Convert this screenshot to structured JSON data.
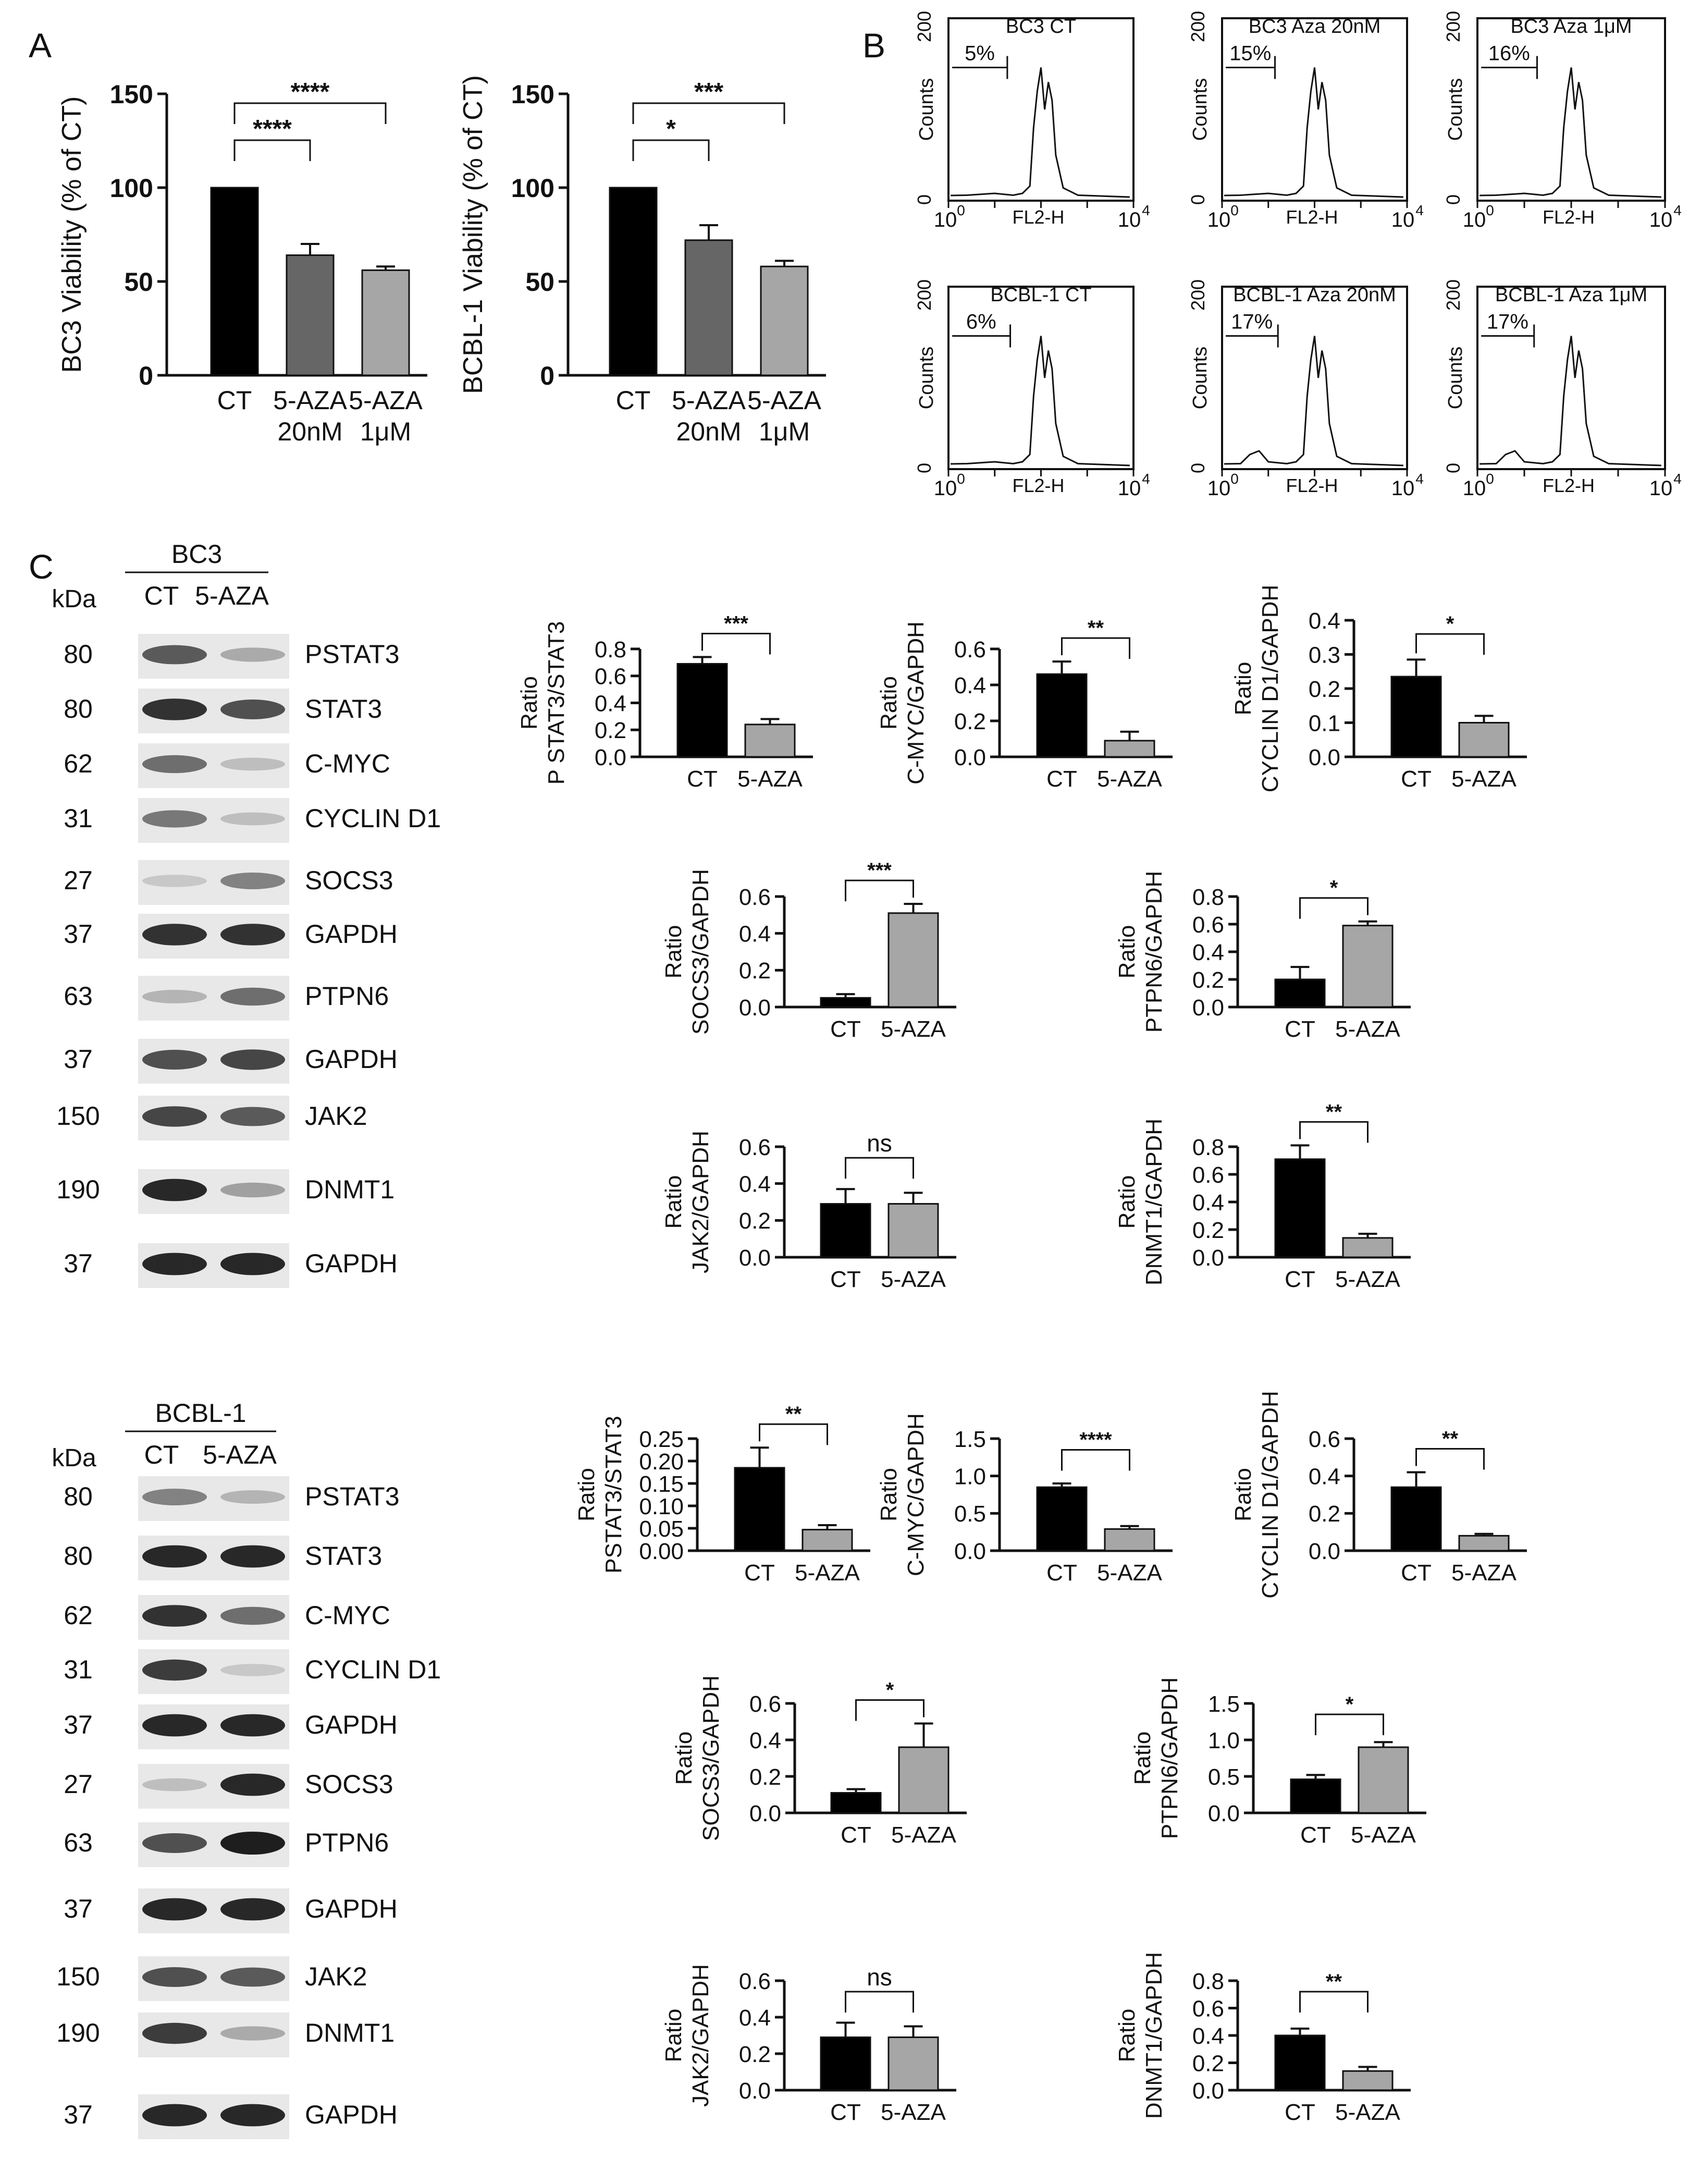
{
  "panel_letters": [
    "A",
    "B",
    "C"
  ],
  "colors": {
    "black_bar": "#000000",
    "dark_gray_bar": "#666666",
    "light_gray_bar": "#a6a6a6",
    "blot_bg": "#e8e8e8",
    "band": "#303030"
  },
  "chart_data": [
    {
      "id": "A1",
      "type": "bar",
      "ylabel": "BC3 Viability (% of CT)",
      "ylim": [
        0,
        150
      ],
      "yticks": [
        "0",
        "50",
        "100",
        "150"
      ],
      "categories": [
        [
          "CT"
        ],
        [
          "5-AZA",
          "20nM"
        ],
        [
          "5-AZA",
          "1μM"
        ]
      ],
      "values": [
        100,
        64,
        56
      ],
      "errors": [
        0,
        6,
        2
      ],
      "bar_colors": [
        "#000000",
        "#666666",
        "#a6a6a6"
      ],
      "sig": [
        {
          "a": 0,
          "b": 1,
          "label": "****"
        },
        {
          "a": 0,
          "b": 2,
          "label": "****"
        }
      ]
    },
    {
      "id": "A2",
      "type": "bar",
      "ylabel": "BCBL-1 Viability (% of CT)",
      "ylim": [
        0,
        150
      ],
      "yticks": [
        "0",
        "50",
        "100",
        "150"
      ],
      "categories": [
        [
          "CT"
        ],
        [
          "5-AZA",
          "20nM"
        ],
        [
          "5-AZA",
          "1μM"
        ]
      ],
      "values": [
        100,
        72,
        58
      ],
      "errors": [
        0,
        8,
        3
      ],
      "bar_colors": [
        "#000000",
        "#666666",
        "#a6a6a6"
      ],
      "sig": [
        {
          "a": 0,
          "b": 1,
          "label": "*"
        },
        {
          "a": 0,
          "b": 2,
          "label": "***"
        }
      ]
    },
    {
      "id": "C1",
      "type": "bar",
      "ylabel": "Ratio P STAT3/STAT3",
      "ylim": [
        0,
        0.8
      ],
      "yticks": [
        "0.0",
        "0.2",
        "0.4",
        "0.6",
        "0.8"
      ],
      "categories": [
        [
          "CT"
        ],
        [
          "5-AZA"
        ]
      ],
      "values": [
        0.69,
        0.24
      ],
      "errors": [
        0.05,
        0.04
      ],
      "sig": [
        {
          "a": 0,
          "b": 1,
          "label": "***"
        }
      ]
    },
    {
      "id": "C2",
      "type": "bar",
      "ylabel": "Ratio C-MYC/GAPDH",
      "ylim": [
        0,
        0.6
      ],
      "yticks": [
        "0.0",
        "0.2",
        "0.4",
        "0.6"
      ],
      "categories": [
        [
          "CT"
        ],
        [
          "5-AZA"
        ]
      ],
      "values": [
        0.46,
        0.09
      ],
      "errors": [
        0.07,
        0.05
      ],
      "sig": [
        {
          "a": 0,
          "b": 1,
          "label": "**"
        }
      ]
    },
    {
      "id": "C3",
      "type": "bar",
      "ylabel": "Ratio CYCLIN D1/GAPDH",
      "ylim": [
        0,
        0.4
      ],
      "yticks": [
        "0.0",
        "0.1",
        "0.2",
        "0.3",
        "0.4"
      ],
      "categories": [
        [
          "CT"
        ],
        [
          "5-AZA"
        ]
      ],
      "values": [
        0.235,
        0.1
      ],
      "errors": [
        0.05,
        0.02
      ],
      "sig": [
        {
          "a": 0,
          "b": 1,
          "label": "*"
        }
      ]
    },
    {
      "id": "C4",
      "type": "bar",
      "ylabel": "Ratio SOCS3/GAPDH",
      "ylim": [
        0,
        0.6
      ],
      "yticks": [
        "0.0",
        "0.2",
        "0.4",
        "0.6"
      ],
      "categories": [
        [
          "CT"
        ],
        [
          "5-AZA"
        ]
      ],
      "values": [
        0.05,
        0.51
      ],
      "errors": [
        0.02,
        0.05
      ],
      "sig": [
        {
          "a": 0,
          "b": 1,
          "label": "***"
        }
      ]
    },
    {
      "id": "C5",
      "type": "bar",
      "ylabel": "Ratio PTPN6/GAPDH",
      "ylim": [
        0,
        0.8
      ],
      "yticks": [
        "0.0",
        "0.2",
        "0.4",
        "0.6",
        "0.8"
      ],
      "categories": [
        [
          "CT"
        ],
        [
          "5-AZA"
        ]
      ],
      "values": [
        0.2,
        0.59
      ],
      "errors": [
        0.09,
        0.03
      ],
      "sig": [
        {
          "a": 0,
          "b": 1,
          "label": "*"
        }
      ]
    },
    {
      "id": "C6",
      "type": "bar",
      "ylabel": "Ratio JAK2/GAPDH",
      "ylim": [
        0,
        0.6
      ],
      "yticks": [
        "0.0",
        "0.2",
        "0.4",
        "0.6"
      ],
      "categories": [
        [
          "CT"
        ],
        [
          "5-AZA"
        ]
      ],
      "values": [
        0.29,
        0.29
      ],
      "errors": [
        0.08,
        0.06
      ],
      "sig": [
        {
          "a": 0,
          "b": 1,
          "label": "ns"
        }
      ]
    },
    {
      "id": "C7",
      "type": "bar",
      "ylabel": "Ratio DNMT1/GAPDH",
      "ylim": [
        0,
        0.8
      ],
      "yticks": [
        "0.0",
        "0.2",
        "0.4",
        "0.6",
        "0.8"
      ],
      "categories": [
        [
          "CT"
        ],
        [
          "5-AZA"
        ]
      ],
      "values": [
        0.71,
        0.14
      ],
      "errors": [
        0.1,
        0.03
      ],
      "sig": [
        {
          "a": 0,
          "b": 1,
          "label": "**"
        }
      ]
    },
    {
      "id": "C8",
      "type": "bar",
      "ylabel": "Ratio PSTAT3/STAT3",
      "ylim": [
        0,
        0.25
      ],
      "yticks": [
        "0.00",
        "0.05",
        "0.10",
        "0.15",
        "0.20",
        "0.25"
      ],
      "categories": [
        [
          "CT"
        ],
        [
          "5-AZA"
        ]
      ],
      "values": [
        0.185,
        0.047
      ],
      "errors": [
        0.045,
        0.01
      ],
      "sig": [
        {
          "a": 0,
          "b": 1,
          "label": "**"
        }
      ]
    },
    {
      "id": "C9",
      "type": "bar",
      "ylabel": "Ratio C-MYC/GAPDH",
      "ylim": [
        0,
        1.5
      ],
      "yticks": [
        "0.0",
        "0.5",
        "1.0",
        "1.5"
      ],
      "categories": [
        [
          "CT"
        ],
        [
          "5-AZA"
        ]
      ],
      "values": [
        0.85,
        0.29
      ],
      "errors": [
        0.05,
        0.04
      ],
      "sig": [
        {
          "a": 0,
          "b": 1,
          "label": "****"
        }
      ]
    },
    {
      "id": "C10",
      "type": "bar",
      "ylabel": "Ratio CYCLIN D1/GAPDH",
      "ylim": [
        0,
        0.6
      ],
      "yticks": [
        "0.0",
        "0.2",
        "0.4",
        "0.6"
      ],
      "categories": [
        [
          "CT"
        ],
        [
          "5-AZA"
        ]
      ],
      "values": [
        0.34,
        0.08
      ],
      "errors": [
        0.08,
        0.01
      ],
      "sig": [
        {
          "a": 0,
          "b": 1,
          "label": "**"
        }
      ]
    },
    {
      "id": "C11",
      "type": "bar",
      "ylabel": "Ratio SOCS3/GAPDH",
      "ylim": [
        0,
        0.6
      ],
      "yticks": [
        "0.0",
        "0.2",
        "0.4",
        "0.6"
      ],
      "categories": [
        [
          "CT"
        ],
        [
          "5-AZA"
        ]
      ],
      "values": [
        0.11,
        0.36
      ],
      "errors": [
        0.02,
        0.13
      ],
      "sig": [
        {
          "a": 0,
          "b": 1,
          "label": "*"
        }
      ]
    },
    {
      "id": "C12",
      "type": "bar",
      "ylabel": "Ratio PTPN6/GAPDH",
      "ylim": [
        0,
        1.5
      ],
      "yticks": [
        "0.0",
        "0.5",
        "1.0",
        "1.5"
      ],
      "categories": [
        [
          "CT"
        ],
        [
          "5-AZA"
        ]
      ],
      "values": [
        0.46,
        0.9
      ],
      "errors": [
        0.06,
        0.07
      ],
      "sig": [
        {
          "a": 0,
          "b": 1,
          "label": "*"
        }
      ]
    },
    {
      "id": "C13",
      "type": "bar",
      "ylabel": "Ratio JAK2/GAPDH",
      "ylim": [
        0,
        0.6
      ],
      "yticks": [
        "0.0",
        "0.2",
        "0.4",
        "0.6"
      ],
      "categories": [
        [
          "CT"
        ],
        [
          "5-AZA"
        ]
      ],
      "values": [
        0.29,
        0.29
      ],
      "errors": [
        0.08,
        0.06
      ],
      "sig": [
        {
          "a": 0,
          "b": 1,
          "label": "ns"
        }
      ]
    },
    {
      "id": "C14",
      "type": "bar",
      "ylabel": "Ratio DNMT1/GAPDH",
      "ylim": [
        0,
        0.8
      ],
      "yticks": [
        "0.0",
        "0.2",
        "0.4",
        "0.6",
        "0.8"
      ],
      "categories": [
        [
          "CT"
        ],
        [
          "5-AZA"
        ]
      ],
      "values": [
        0.4,
        0.14
      ],
      "errors": [
        0.05,
        0.03
      ],
      "sig": [
        {
          "a": 0,
          "b": 1,
          "label": "**"
        }
      ]
    }
  ],
  "flow_histograms": [
    {
      "title": "BC3 CT",
      "percent": "5%"
    },
    {
      "title": "BC3 Aza 20nM",
      "percent": "15%"
    },
    {
      "title": "BC3 Aza 1μM",
      "percent": "16%"
    },
    {
      "title": "BCBL-1 CT",
      "percent": "6%"
    },
    {
      "title": "BCBL-1 Aza 20nM",
      "percent": "17%"
    },
    {
      "title": "BCBL-1 Aza 1μM",
      "percent": "17%"
    }
  ],
  "flow_axis": {
    "ylabel": "Counts",
    "xlabel": "FL2-H",
    "y0": "0",
    "y1": "200",
    "x0": "10",
    "x0exp": "0",
    "x1": "10",
    "x1exp": "4"
  },
  "blots": [
    {
      "cell_line": "BC3",
      "kda_label": "kDa",
      "lanes": [
        "CT",
        "5-AZA"
      ],
      "rows": [
        {
          "kda": "80",
          "protein": "PSTAT3"
        },
        {
          "kda": "80",
          "protein": "STAT3"
        },
        {
          "kda": "62",
          "protein": "C-MYC"
        },
        {
          "kda": "31",
          "protein": "CYCLIN D1"
        },
        {
          "kda": "27",
          "protein": "SOCS3"
        },
        {
          "kda": "37",
          "protein": "GAPDH"
        },
        {
          "kda": "63",
          "protein": "PTPN6"
        },
        {
          "kda": "37",
          "protein": "GAPDH"
        },
        {
          "kda": "150",
          "protein": "JAK2"
        },
        {
          "kda": "190",
          "protein": "DNMT1"
        },
        {
          "kda": "37",
          "protein": "GAPDH"
        }
      ],
      "band_intensity": [
        [
          0.7,
          0.3
        ],
        [
          0.9,
          0.75
        ],
        [
          0.6,
          0.2
        ],
        [
          0.55,
          0.2
        ],
        [
          0.15,
          0.5
        ],
        [
          0.9,
          0.9
        ],
        [
          0.25,
          0.6
        ],
        [
          0.75,
          0.8
        ],
        [
          0.8,
          0.7
        ],
        [
          0.95,
          0.35
        ],
        [
          0.95,
          0.95
        ]
      ]
    },
    {
      "cell_line": "BCBL-1",
      "kda_label": "kDa",
      "lanes": [
        "CT",
        "5-AZA"
      ],
      "rows": [
        {
          "kda": "80",
          "protein": "PSTAT3"
        },
        {
          "kda": "80",
          "protein": "STAT3"
        },
        {
          "kda": "62",
          "protein": "C-MYC"
        },
        {
          "kda": "31",
          "protein": "CYCLIN D1"
        },
        {
          "kda": "37",
          "protein": "GAPDH"
        },
        {
          "kda": "27",
          "protein": "SOCS3"
        },
        {
          "kda": "63",
          "protein": "PTPN6"
        },
        {
          "kda": "37",
          "protein": "GAPDH"
        },
        {
          "kda": "150",
          "protein": "JAK2"
        },
        {
          "kda": "190",
          "protein": "DNMT1"
        },
        {
          "kda": "37",
          "protein": "GAPDH"
        }
      ],
      "band_intensity": [
        [
          0.5,
          0.25
        ],
        [
          0.95,
          0.95
        ],
        [
          0.9,
          0.6
        ],
        [
          0.85,
          0.15
        ],
        [
          0.95,
          0.95
        ],
        [
          0.2,
          0.95
        ],
        [
          0.75,
          1.0
        ],
        [
          0.95,
          0.95
        ],
        [
          0.75,
          0.7
        ],
        [
          0.85,
          0.3
        ],
        [
          0.95,
          0.95
        ]
      ]
    }
  ]
}
